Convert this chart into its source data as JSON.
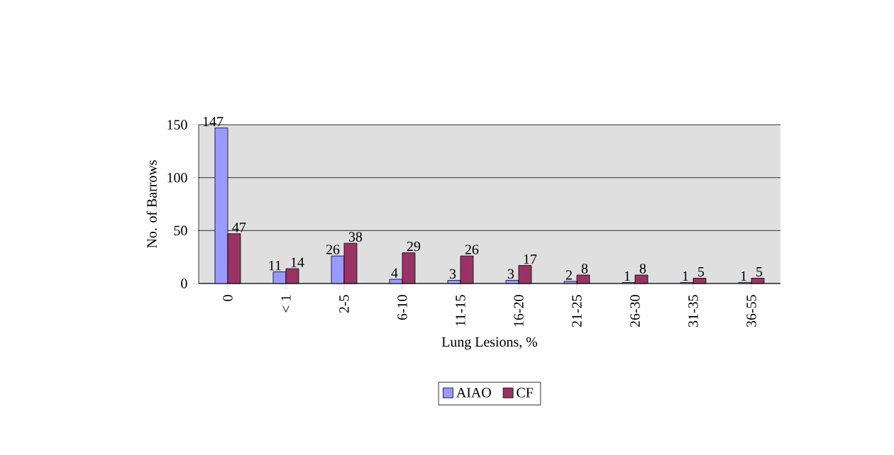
{
  "chart_data": {
    "type": "bar",
    "xlabel": "Lung Lesions, %",
    "ylabel": "No. of Barrows",
    "categories": [
      "0",
      "< 1",
      "2-5",
      "6-10",
      "11-15",
      "16-20",
      "21-25",
      "26-30",
      "31-35",
      "36-55"
    ],
    "series": [
      {
        "name": "AIAO",
        "color": "#9999ff",
        "values": [
          147,
          11,
          26,
          4,
          3,
          3,
          2,
          1,
          1,
          1
        ]
      },
      {
        "name": "CF",
        "color": "#993366",
        "values": [
          47,
          14,
          38,
          29,
          26,
          17,
          8,
          8,
          5,
          5
        ]
      }
    ],
    "ylim": [
      0,
      150
    ],
    "yticks": [
      0,
      50,
      100,
      150
    ],
    "grid": "y",
    "legend": "bottom",
    "data_labels": true
  }
}
